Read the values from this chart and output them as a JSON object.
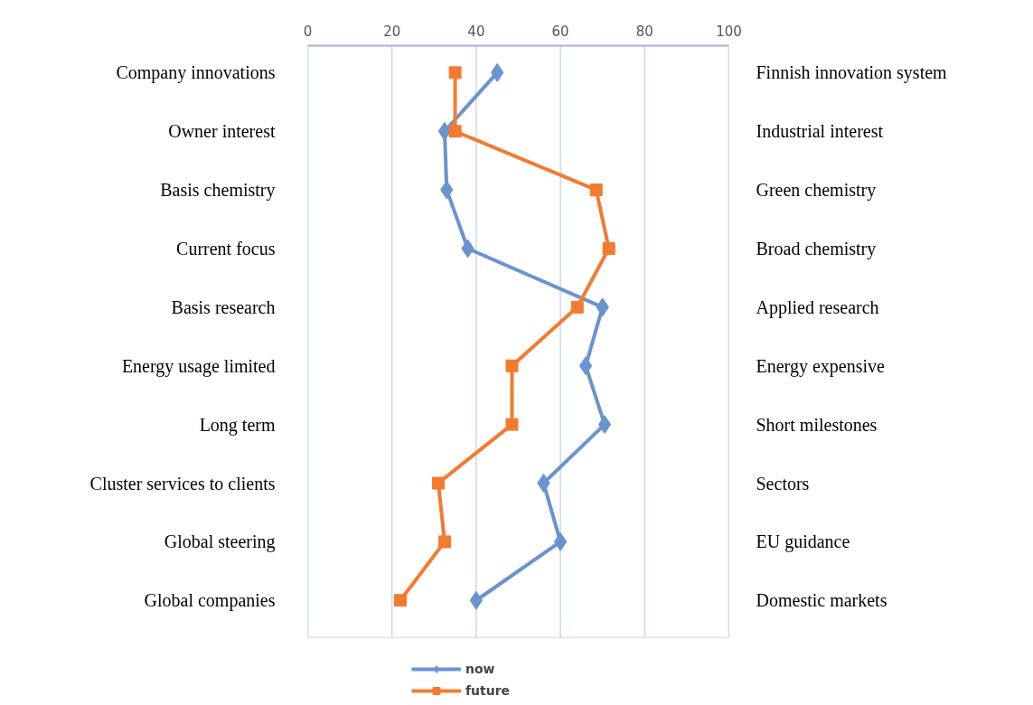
{
  "chart_data": {
    "type": "line",
    "orientation": "horizontal",
    "categories": [
      "Company innovations",
      "Owner interest",
      "Basis chemistry",
      "Current focus",
      "Basis research",
      "Energy usage limited",
      "Long term",
      "Cluster services to clients",
      "Global steering",
      "Global companies"
    ],
    "y2_categories": [
      "Finnish innovation system",
      "Industrial interest",
      "Green chemistry",
      "Broad chemistry",
      "Applied research",
      "Energy expensive",
      "Short milestones",
      "Sectors",
      "EU guidance",
      "Domestic markets"
    ],
    "series": [
      {
        "name": "now",
        "color": "#6a93cf",
        "marker": "diamond",
        "values": [
          45,
          32.5,
          33,
          38,
          70,
          66,
          70.5,
          56,
          60,
          40
        ]
      },
      {
        "name": "future",
        "color": "#f47a30",
        "marker": "square",
        "values": [
          35,
          35,
          68.5,
          71.5,
          64,
          48.5,
          48.5,
          31,
          32.5,
          22
        ]
      }
    ],
    "xlim": [
      0,
      100
    ],
    "xticks": [
      0,
      20,
      40,
      60,
      80,
      100
    ],
    "grid": "x",
    "legend": "bottom",
    "line_style": "solid"
  }
}
